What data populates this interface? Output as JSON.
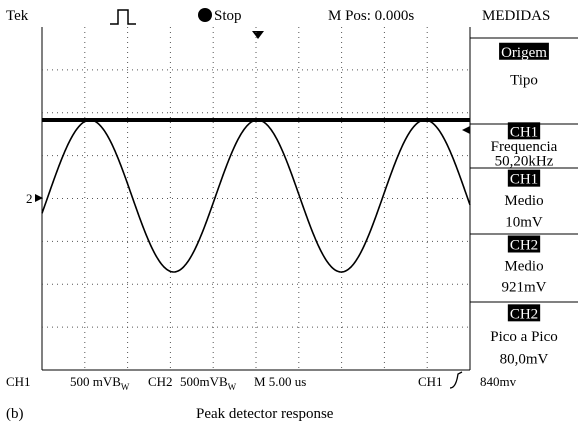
{
  "header": {
    "brand": "Tek",
    "status": "Stop",
    "position": "M Pos: 0.000s",
    "menu_title": "MEDIDAS"
  },
  "menu": [
    {
      "lines": [
        "Origem",
        "Tipo"
      ]
    },
    {
      "lines": [
        "CH1",
        "Frequencia",
        "50,20kHz"
      ]
    },
    {
      "lines": [
        "CH1",
        "Medio",
        "10mV"
      ]
    },
    {
      "lines": [
        "CH2",
        "Medio",
        "921mV"
      ]
    },
    {
      "lines": [
        "CH2",
        "Pico a Pico",
        "80,0mV"
      ]
    }
  ],
  "markers": {
    "ch2_level": "2"
  },
  "footer": {
    "ch1": "CH1",
    "ch1_scale": "500 mVB",
    "ch1_bw": "W",
    "ch2": "CH2",
    "ch2_scale": "500mVB",
    "ch2_bw": "W",
    "timebase": "M 5.00 us",
    "trigger_source": "CH1",
    "trigger_level": "840mv"
  },
  "caption": {
    "label": "(b)",
    "text": "Peak detector response"
  }
}
